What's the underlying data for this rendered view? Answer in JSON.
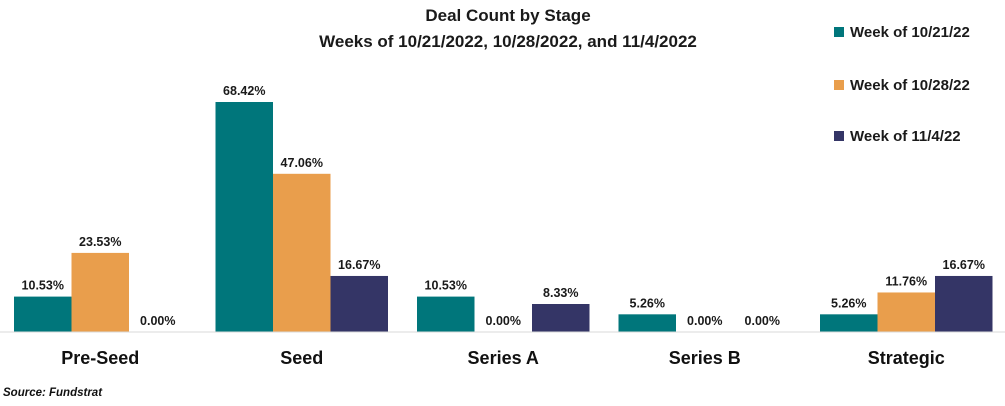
{
  "chart_data": {
    "type": "bar",
    "title": "Deal Count by Stage",
    "subtitle": "Weeks of 10/21/2022, 10/28/2022, and 11/4/2022",
    "categories": [
      "Pre-Seed",
      "Seed",
      "Series A",
      "Series B",
      "Strategic"
    ],
    "series": [
      {
        "name": "Week of 10/21/22",
        "color": "#00767b",
        "values": [
          10.53,
          68.42,
          10.53,
          5.26,
          5.26
        ],
        "labels": [
          "10.53%",
          "68.42%",
          "10.53%",
          "5.26%",
          "5.26%"
        ]
      },
      {
        "name": "Week of 10/28/22",
        "color": "#e99e4c",
        "values": [
          23.53,
          47.06,
          0.0,
          0.0,
          11.76
        ],
        "labels": [
          "23.53%",
          "47.06%",
          "0.00%",
          "0.00%",
          "11.76%"
        ]
      },
      {
        "name": "Week of 11/4/22",
        "color": "#343566",
        "values": [
          0.0,
          16.67,
          8.33,
          0.0,
          16.67
        ],
        "labels": [
          "0.00%",
          "16.67%",
          "8.33%",
          "0.00%",
          "16.67%"
        ]
      }
    ],
    "ylim": [
      0,
      80
    ],
    "grid": false,
    "legend_position": "top-right",
    "source": "Source: Fundstrat"
  }
}
